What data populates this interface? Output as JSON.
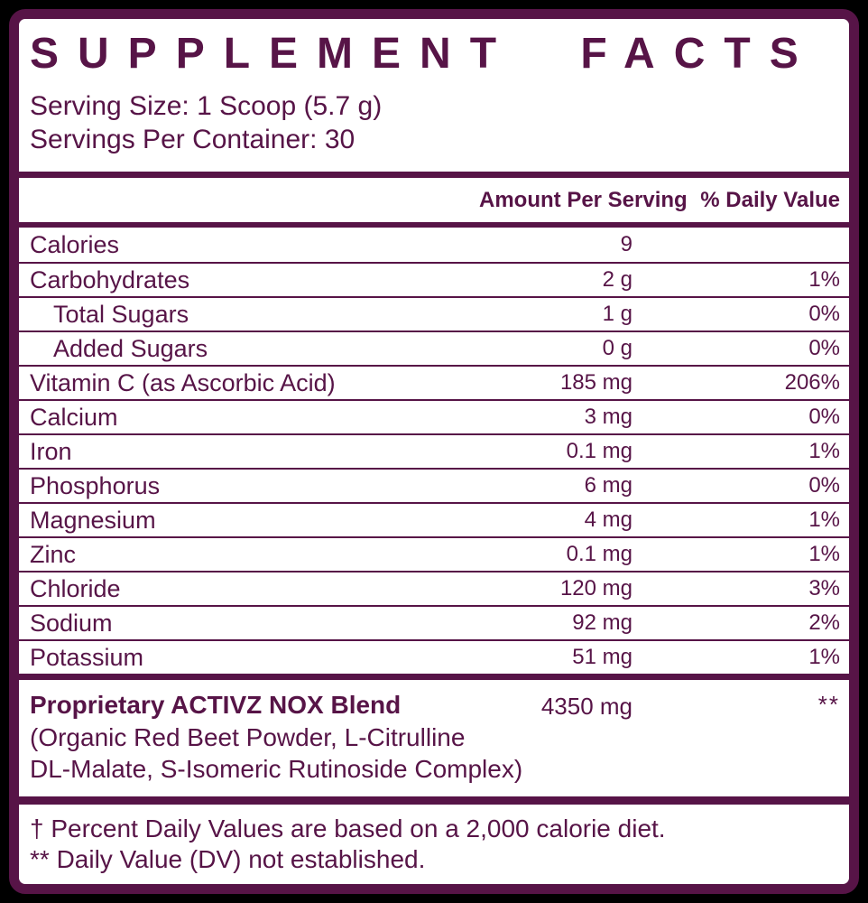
{
  "label": {
    "title": "SUPPLEMENT  FACTS",
    "serving_size": "Serving Size: 1 Scoop (5.7 g)",
    "servings_per_container": "Servings Per Container: 30",
    "columns": {
      "amount": "Amount Per Serving",
      "daily_value": "% Daily Value"
    },
    "rows": [
      {
        "name": "Calories",
        "amount": "9",
        "dv": "",
        "indent": false
      },
      {
        "name": "Carbohydrates",
        "amount": "2 g",
        "dv": "1%",
        "indent": false
      },
      {
        "name": "Total Sugars",
        "amount": "1 g",
        "dv": "0%",
        "indent": true
      },
      {
        "name": "Added Sugars",
        "amount": "0 g",
        "dv": "0%",
        "indent": true
      },
      {
        "name": "Vitamin C (as Ascorbic Acid)",
        "amount": "185 mg",
        "dv": "206%",
        "indent": false
      },
      {
        "name": "Calcium",
        "amount": "3 mg",
        "dv": "0%",
        "indent": false
      },
      {
        "name": "Iron",
        "amount": "0.1 mg",
        "dv": "1%",
        "indent": false
      },
      {
        "name": "Phosphorus",
        "amount": "6 mg",
        "dv": "0%",
        "indent": false
      },
      {
        "name": "Magnesium",
        "amount": "4 mg",
        "dv": "1%",
        "indent": false
      },
      {
        "name": "Zinc",
        "amount": "0.1 mg",
        "dv": "1%",
        "indent": false
      },
      {
        "name": "Chloride",
        "amount": "120 mg",
        "dv": "3%",
        "indent": false
      },
      {
        "name": "Sodium",
        "amount": "92 mg",
        "dv": "2%",
        "indent": false
      },
      {
        "name": "Potassium",
        "amount": "51 mg",
        "dv": "1%",
        "indent": false
      }
    ],
    "blend": {
      "name": "Proprietary ACTIVZ NOX Blend",
      "amount": "4350 mg",
      "dv": "**",
      "description_line1": "(Organic Red Beet Powder, L-Citrulline",
      "description_line2": "DL-Malate, S-Isomeric Rutinoside Complex)"
    },
    "footnotes": [
      "† Percent Daily Values are based on a 2,000 calorie diet.",
      "** Daily Value (DV) not established."
    ],
    "colors": {
      "accent": "#571447",
      "card_background": "#ffffff",
      "outer_background": "#000000"
    }
  }
}
